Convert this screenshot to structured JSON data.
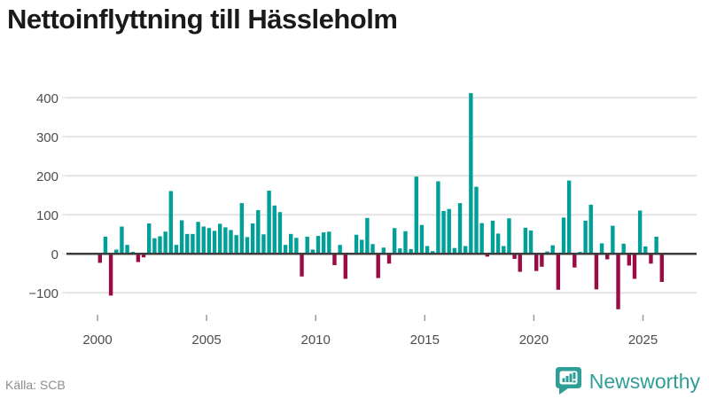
{
  "title": "Nettoinflyttning till Hässleholm",
  "source": "Källa: SCB",
  "branding": {
    "name": "Newsworthy",
    "icon": "bar-chart-speech-bubble"
  },
  "colors": {
    "positive_bar": "#00a099",
    "negative_bar": "#9b0c44",
    "gridline": "#e4e4e4",
    "zero_line": "#3d3d3d",
    "axis_text": "#4d4d4d",
    "tick_mark": "#9a9a9a",
    "title_text": "#1a1a1a",
    "source_text": "#8c8c8c",
    "brand_teal": "#2f9e97"
  },
  "chart_data": {
    "type": "bar",
    "title": "Nettoinflyttning till Hässleholm",
    "frequency": "quarterly",
    "period_start": "2000 Q1",
    "period_end": "2025 Q4",
    "xlabel": "",
    "ylabel": "",
    "x_tick_labels": [
      "2000",
      "2005",
      "2010",
      "2015",
      "2020",
      "2025"
    ],
    "y_ticks": [
      400,
      300,
      200,
      100,
      0,
      -100
    ],
    "ylim": [
      -160,
      440
    ],
    "grid": "horizontal",
    "legend": "none",
    "values": [
      -23,
      44,
      -107,
      11,
      70,
      23,
      5,
      -21,
      -9,
      78,
      40,
      45,
      57,
      161,
      23,
      86,
      51,
      51,
      82,
      70,
      66,
      59,
      77,
      68,
      61,
      48,
      130,
      43,
      78,
      112,
      50,
      162,
      124,
      107,
      23,
      51,
      41,
      -58,
      44,
      11,
      46,
      55,
      57,
      -29,
      23,
      -64,
      0,
      49,
      36,
      92,
      25,
      -62,
      16,
      -25,
      66,
      14,
      58,
      12,
      198,
      74,
      20,
      7,
      186,
      110,
      115,
      15,
      130,
      20,
      412,
      172,
      79,
      -7,
      85,
      52,
      20,
      91,
      -13,
      -46,
      67,
      60,
      -44,
      -33,
      6,
      22,
      -92,
      93,
      188,
      -35,
      5,
      85,
      126,
      -91,
      27,
      -14,
      72,
      -142,
      26,
      -30,
      -64,
      111,
      19,
      -25,
      44,
      -72
    ]
  }
}
